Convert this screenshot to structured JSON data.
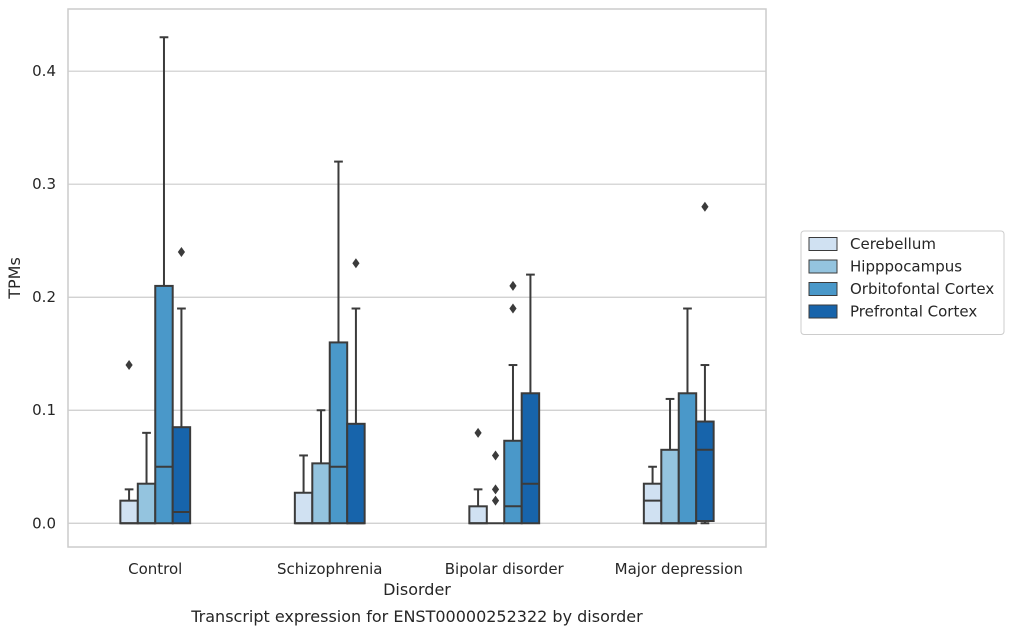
{
  "caption": "Transcript expression for ENST00000252322 by disorder",
  "colors": {
    "Cerebellum": "#d0e1f2",
    "Hipppocampus": "#94c4df",
    "Orbitofontal Cortex": "#4a98c9",
    "Prefrontal Cortex": "#1764ab",
    "box_edge": "#3b3b3b",
    "grid": "#cccccc",
    "frame": "#cccccc"
  },
  "chart_data": {
    "type": "boxplot",
    "title": "",
    "xlabel": "Disorder",
    "ylabel": "TPMs",
    "ylim": [
      -0.021,
      0.455
    ],
    "yticks": [
      0.0,
      0.1,
      0.2,
      0.3,
      0.4
    ],
    "ytick_labels": [
      "0.0",
      "0.1",
      "0.2",
      "0.3",
      "0.4"
    ],
    "grid": "horizontal",
    "legend_position": "right",
    "categories": [
      "Control",
      "Schizophrenia",
      "Bipolar disorder",
      "Major depression"
    ],
    "series": [
      {
        "name": "Cerebellum",
        "boxes": [
          {
            "q1": 0.0,
            "median": 0.0,
            "q3": 0.02,
            "whisker_low": 0.0,
            "whisker_high": 0.03,
            "outliers": [
              0.14
            ]
          },
          {
            "q1": 0.0,
            "median": 0.0,
            "q3": 0.027,
            "whisker_low": 0.0,
            "whisker_high": 0.06,
            "outliers": []
          },
          {
            "q1": 0.0,
            "median": 0.0,
            "q3": 0.015,
            "whisker_low": 0.0,
            "whisker_high": 0.03,
            "outliers": [
              0.08
            ]
          },
          {
            "q1": 0.0,
            "median": 0.02,
            "q3": 0.035,
            "whisker_low": 0.0,
            "whisker_high": 0.05,
            "outliers": []
          }
        ]
      },
      {
        "name": "Hipppocampus",
        "boxes": [
          {
            "q1": 0.0,
            "median": 0.0,
            "q3": 0.035,
            "whisker_low": 0.0,
            "whisker_high": 0.08,
            "outliers": []
          },
          {
            "q1": 0.0,
            "median": 0.0,
            "q3": 0.053,
            "whisker_low": 0.0,
            "whisker_high": 0.1,
            "outliers": []
          },
          {
            "q1": 0.0,
            "median": 0.0,
            "q3": 0.0,
            "whisker_low": 0.0,
            "whisker_high": 0.0,
            "outliers": [
              0.02,
              0.03,
              0.06
            ]
          },
          {
            "q1": 0.0,
            "median": 0.0,
            "q3": 0.065,
            "whisker_low": 0.0,
            "whisker_high": 0.11,
            "outliers": []
          }
        ]
      },
      {
        "name": "Orbitofontal Cortex",
        "boxes": [
          {
            "q1": 0.0,
            "median": 0.05,
            "q3": 0.21,
            "whisker_low": 0.0,
            "whisker_high": 0.43,
            "outliers": []
          },
          {
            "q1": 0.0,
            "median": 0.05,
            "q3": 0.16,
            "whisker_low": 0.0,
            "whisker_high": 0.32,
            "outliers": []
          },
          {
            "q1": 0.0,
            "median": 0.015,
            "q3": 0.073,
            "whisker_low": 0.0,
            "whisker_high": 0.14,
            "outliers": [
              0.19,
              0.21
            ]
          },
          {
            "q1": 0.0,
            "median": 0.0,
            "q3": 0.115,
            "whisker_low": 0.0,
            "whisker_high": 0.19,
            "outliers": []
          }
        ]
      },
      {
        "name": "Prefrontal Cortex",
        "boxes": [
          {
            "q1": 0.0,
            "median": 0.01,
            "q3": 0.085,
            "whisker_low": 0.0,
            "whisker_high": 0.19,
            "outliers": [
              0.24
            ]
          },
          {
            "q1": 0.0,
            "median": 0.0,
            "q3": 0.088,
            "whisker_low": 0.0,
            "whisker_high": 0.19,
            "outliers": [
              0.23
            ]
          },
          {
            "q1": 0.0,
            "median": 0.035,
            "q3": 0.115,
            "whisker_low": 0.0,
            "whisker_high": 0.22,
            "outliers": []
          },
          {
            "q1": 0.002,
            "median": 0.065,
            "q3": 0.09,
            "whisker_low": 0.0,
            "whisker_high": 0.14,
            "outliers": [
              0.28
            ]
          }
        ]
      }
    ]
  }
}
